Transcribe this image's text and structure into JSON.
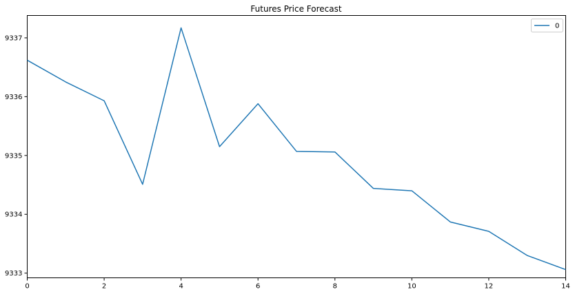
{
  "chart_data": {
    "type": "line",
    "title": "Futures Price Forecast",
    "xlabel": "",
    "ylabel": "",
    "x": [
      0,
      1,
      2,
      3,
      4,
      5,
      6,
      7,
      8,
      9,
      10,
      11,
      12,
      13,
      14
    ],
    "series": [
      {
        "name": "0",
        "color": "#1f77b4",
        "values": [
          9336.62,
          9336.25,
          9335.93,
          9334.51,
          9337.17,
          9335.15,
          9335.88,
          9335.07,
          9335.06,
          9334.44,
          9334.4,
          9333.87,
          9333.71,
          9333.3,
          9333.06
        ]
      }
    ],
    "xlim": [
      0,
      14
    ],
    "ylim": [
      9332.92,
      9337.38
    ],
    "xticks": [
      0,
      2,
      4,
      6,
      8,
      10,
      12,
      14
    ],
    "yticks": [
      9333,
      9334,
      9335,
      9336,
      9337
    ],
    "grid": false,
    "legend_position": "top-right"
  }
}
